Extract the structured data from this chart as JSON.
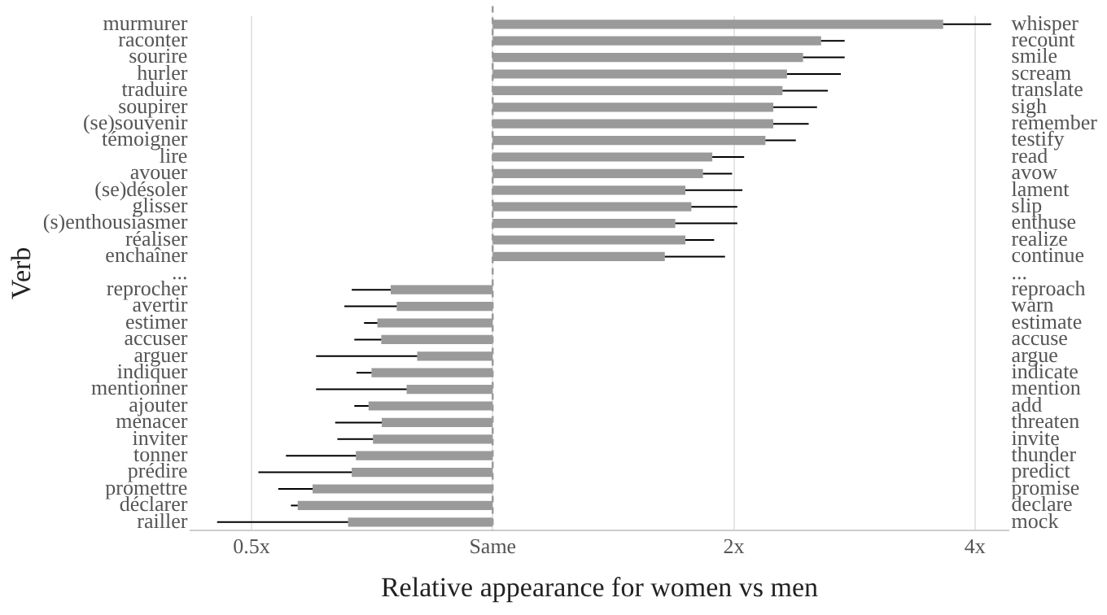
{
  "chart_data": {
    "type": "bar",
    "orientation": "horizontal",
    "xlabel": "Relative appearance for women vs men",
    "ylabel": "Verb",
    "categories": [
      "murmurer",
      "raconter",
      "sourire",
      "hurler",
      "traduire",
      "soupirer",
      "(se)souvenir",
      "témoigner",
      "lire",
      "avouer",
      "(se)désoler",
      "glisser",
      "(s)enthousiasmer",
      "réaliser",
      "enchaîner",
      "...",
      "reprocher",
      "avertir",
      "estimer",
      "accuser",
      "arguer",
      "indiquer",
      "mentionner",
      "ajouter",
      "menacer",
      "inviter",
      "tonner",
      "prédire",
      "promettre",
      "déclarer",
      "railler"
    ],
    "y2_categories": [
      "whisper",
      "recount",
      "smile",
      "scream",
      "translate",
      "sigh",
      "remember",
      "testify",
      "read",
      "avow",
      "lament",
      "slip",
      "enthuse",
      "realize",
      "continue",
      "...",
      "reproach",
      "warn",
      "estimate",
      "accuse",
      "argue",
      "indicate",
      "mention",
      "add",
      "threaten",
      "invite",
      "thunder",
      "predict",
      "promise",
      "declare",
      "mock"
    ],
    "values": [
      2.65,
      1.57,
      1.44,
      1.33,
      1.3,
      1.24,
      1.24,
      1.19,
      0.88,
      0.83,
      0.74,
      0.77,
      0.69,
      0.74,
      0.64,
      null,
      -0.254,
      -0.241,
      -0.282,
      -0.274,
      -0.195,
      -0.294,
      -0.219,
      -0.3,
      -0.273,
      -0.291,
      -0.325,
      -0.333,
      -0.404,
      -0.429,
      -0.34
    ],
    "base": [
      1,
      1,
      1,
      1,
      1,
      1,
      1,
      1,
      1,
      1,
      1,
      1,
      1,
      1,
      1,
      null,
      1,
      1,
      1,
      1,
      1,
      1,
      1,
      1,
      1,
      1,
      1,
      1,
      1,
      1,
      1
    ],
    "errors": [
      [
        3.65,
        4.19
      ],
      [
        2.57,
        2.75
      ],
      [
        2.44,
        2.75
      ],
      [
        2.33,
        2.72
      ],
      [
        2.3,
        2.62
      ],
      [
        2.24,
        2.54
      ],
      [
        2.24,
        2.48
      ],
      [
        2.19,
        2.39
      ],
      [
        1.88,
        2.06
      ],
      [
        1.83,
        1.99
      ],
      [
        1.74,
        2.05
      ],
      [
        1.77,
        2.02
      ],
      [
        1.69,
        2.02
      ],
      [
        1.74,
        1.89
      ],
      [
        1.64,
        1.95
      ],
      null,
      [
        0.667,
        0.746
      ],
      [
        0.653,
        0.759
      ],
      [
        0.691,
        0.718
      ],
      [
        0.672,
        0.726
      ],
      [
        0.602,
        0.805
      ],
      [
        0.676,
        0.706
      ],
      [
        0.602,
        0.781
      ],
      [
        0.672,
        0.7
      ],
      [
        0.636,
        0.727
      ],
      [
        0.64,
        0.709
      ],
      [
        0.552,
        0.675
      ],
      [
        0.51,
        0.667
      ],
      [
        0.54,
        0.596
      ],
      [
        0.56,
        0.571
      ],
      [
        0.453,
        0.66
      ]
    ],
    "color": "#9a9a9a",
    "log": "x",
    "xlim": [
      0.42,
      4.4
    ],
    "xticks": [
      {
        "value": 0.5,
        "label": "0.5x"
      },
      {
        "value": 1,
        "label": "Same"
      },
      {
        "value": 2,
        "label": "2x"
      },
      {
        "value": 4,
        "label": "4x"
      }
    ],
    "grid": "x",
    "ref_lines": [
      {
        "axis": "x",
        "value": 1,
        "label": null,
        "line_style": "dashed",
        "color": "#999999"
      }
    ]
  }
}
